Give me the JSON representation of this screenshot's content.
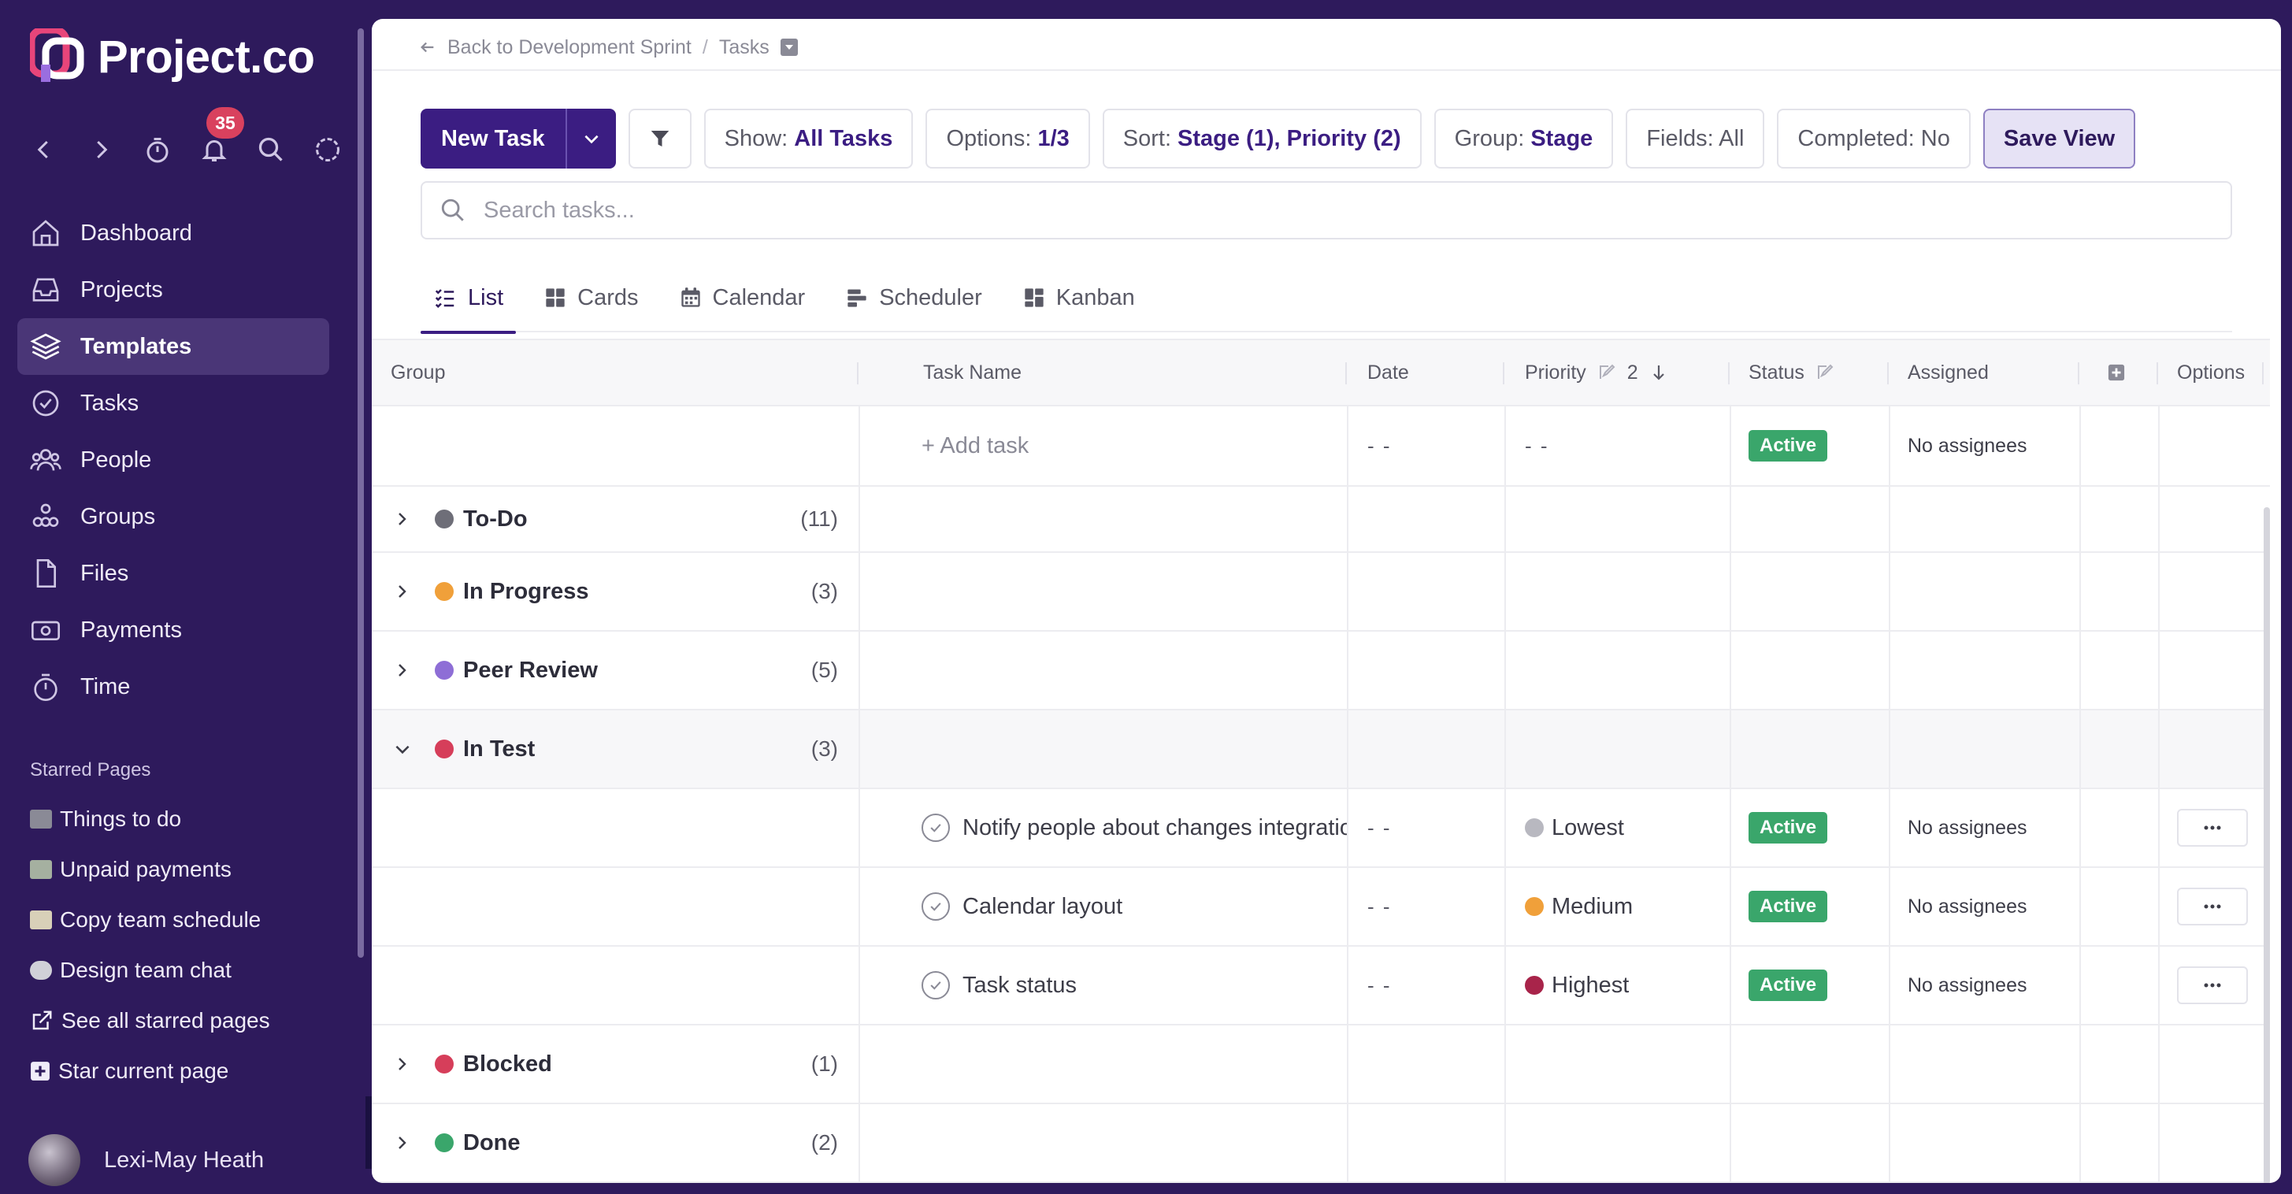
{
  "app": {
    "name": "Project.co",
    "brand_color": "#2e1a5c",
    "accent_color": "#3b1d82"
  },
  "sidebar": {
    "notification_count": "35",
    "menu": [
      {
        "label": "Dashboard",
        "icon": "home-icon"
      },
      {
        "label": "Projects",
        "icon": "inbox-icon"
      },
      {
        "label": "Templates",
        "icon": "layers-icon",
        "active": true
      },
      {
        "label": "Tasks",
        "icon": "check-circle-icon"
      },
      {
        "label": "People",
        "icon": "people-icon"
      },
      {
        "label": "Groups",
        "icon": "groups-icon"
      },
      {
        "label": "Files",
        "icon": "file-icon"
      },
      {
        "label": "Payments",
        "icon": "payments-icon"
      },
      {
        "label": "Time",
        "icon": "stopwatch-icon"
      }
    ],
    "starred_title": "Starred Pages",
    "starred": [
      {
        "label": "Things to do",
        "icon": "folder-emoji"
      },
      {
        "label": "Unpaid payments",
        "icon": "money-emoji"
      },
      {
        "label": "Copy team schedule",
        "icon": "memo-emoji"
      },
      {
        "label": "Design team chat",
        "icon": "speech-emoji"
      },
      {
        "label": "See all starred pages",
        "icon": "external-link-icon"
      },
      {
        "label": "Star current page",
        "icon": "plus-square-icon"
      }
    ],
    "user_name": "Lexi-May Heath"
  },
  "breadcrumb": {
    "back": "Back to Development Sprint",
    "sep": "/",
    "current": "Tasks"
  },
  "toolbar": {
    "new_task": "New Task",
    "show_label": "Show:",
    "show_value": "All Tasks",
    "options_label": "Options:",
    "options_value": "1/3",
    "sort_label": "Sort:",
    "sort_value": "Stage (1), Priority (2)",
    "group_label": "Group:",
    "group_value": "Stage",
    "fields_label": "Fields: All",
    "completed_label": "Completed: No",
    "save_view": "Save View"
  },
  "search": {
    "placeholder": "Search tasks..."
  },
  "tabs": [
    "List",
    "Cards",
    "Calendar",
    "Scheduler",
    "Kanban"
  ],
  "table": {
    "headers": {
      "group": "Group",
      "task_name": "Task Name",
      "date": "Date",
      "priority": "Priority",
      "priority_sort": "2",
      "status": "Status",
      "assigned": "Assigned",
      "options": "Options"
    },
    "add_row": {
      "add_task": "+ Add task",
      "date": "- -",
      "priority": "- -",
      "status": "Active",
      "assigned": "No assignees"
    },
    "groups": [
      {
        "name": "To-Do",
        "count": "(11)",
        "color": "#6e6e78",
        "expanded": false
      },
      {
        "name": "In Progress",
        "count": "(3)",
        "color": "#f0a03a",
        "expanded": false
      },
      {
        "name": "Peer Review",
        "count": "(5)",
        "color": "#8e6ed6",
        "expanded": false
      },
      {
        "name": "In Test",
        "count": "(3)",
        "color": "#d63e5a",
        "expanded": true
      },
      {
        "name": "Blocked",
        "count": "(1)",
        "color": "#d63e5a",
        "expanded": false
      },
      {
        "name": "Done",
        "count": "(2)",
        "color": "#3aa66b",
        "expanded": false
      }
    ],
    "tasks": [
      {
        "name": "Notify people about changes integrations",
        "date": "- -",
        "priority": "Lowest",
        "priority_color": "#b8b8c0",
        "status": "Active",
        "assigned": "No assignees"
      },
      {
        "name": "Calendar layout",
        "date": "- -",
        "priority": "Medium",
        "priority_color": "#f0a03a",
        "status": "Active",
        "assigned": "No assignees"
      },
      {
        "name": "Task status",
        "date": "- -",
        "priority": "Highest",
        "priority_color": "#a8244a",
        "status": "Active",
        "assigned": "No assignees"
      }
    ]
  }
}
